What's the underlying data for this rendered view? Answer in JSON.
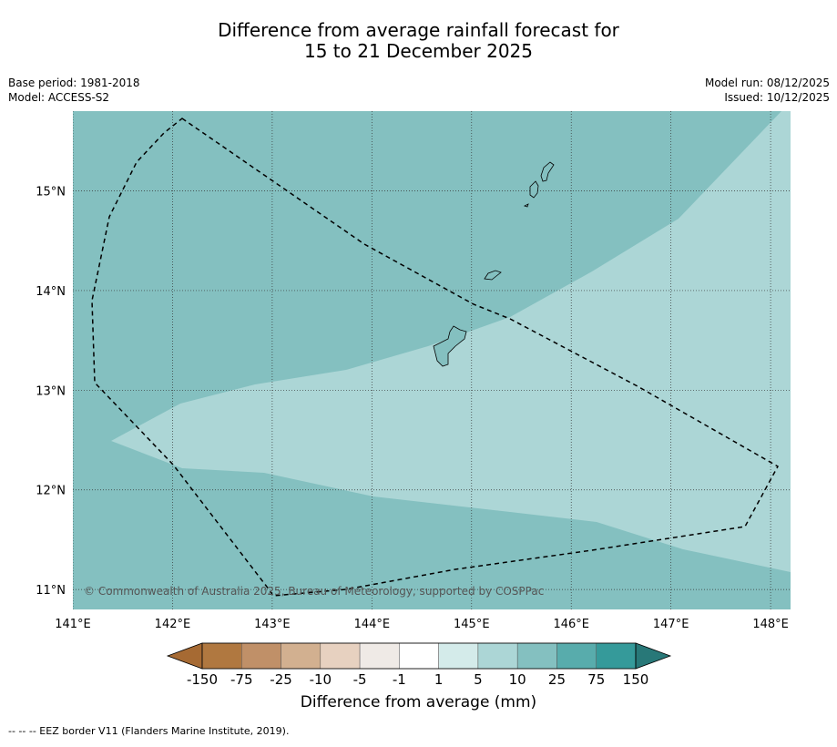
{
  "title_line1": "Difference from average rainfall forecast for",
  "title_line2": "15 to 21 December 2025",
  "meta_left": {
    "base_period": "Base period: 1981-2018",
    "model": "Model: ACCESS-S2"
  },
  "meta_right": {
    "model_run": "Model run: 08/12/2025",
    "issued": "Issued: 10/12/2025"
  },
  "copyright": "© Commonwealth of Australia 2025, Bureau of Meteorology, supported by COSPPac",
  "footer": "--  --  -- EEZ border V11 (Flanders Marine Institute, 2019).",
  "map": {
    "lon_range": [
      141.0,
      148.2
    ],
    "lat_range": [
      10.8,
      15.8
    ],
    "lon_ticks": [
      {
        "v": 141,
        "label": "141°E"
      },
      {
        "v": 142,
        "label": "142°E"
      },
      {
        "v": 143,
        "label": "143°E"
      },
      {
        "v": 144,
        "label": "144°E"
      },
      {
        "v": 145,
        "label": "145°E"
      },
      {
        "v": 146,
        "label": "146°E"
      },
      {
        "v": 147,
        "label": "147°E"
      },
      {
        "v": 148,
        "label": "148°E"
      }
    ],
    "lat_ticks": [
      {
        "v": 11,
        "label": "11°N"
      },
      {
        "v": 12,
        "label": "12°N"
      },
      {
        "v": 13,
        "label": "13°N"
      },
      {
        "v": 14,
        "label": "14°N"
      },
      {
        "v": 15,
        "label": "15°N"
      }
    ],
    "grid": "dotted",
    "colors": {
      "band_10_25": "#84c0c0",
      "band_5_10": "#acd6d6"
    }
  },
  "colorbar": {
    "title": "Difference from average (mm)",
    "labels": [
      "-150",
      "-75",
      "-25",
      "-10",
      "-5",
      "-1",
      "1",
      "5",
      "10",
      "25",
      "75",
      "150"
    ],
    "colors": [
      "#a66a33",
      "#b07840",
      "#c09068",
      "#d2b090",
      "#e7d1c0",
      "#efeae6",
      "#ffffff",
      "#d4ebea",
      "#acd6d6",
      "#84c0c0",
      "#58acac",
      "#359a9a",
      "#287878"
    ]
  }
}
